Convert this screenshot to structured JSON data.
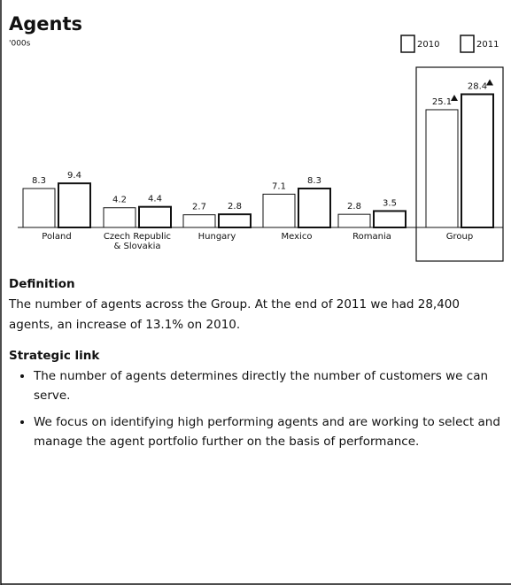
{
  "chart_data": {
    "type": "bar",
    "title": "Agents",
    "subtitle": "'000s",
    "categories": [
      "Poland",
      "Czech Republic & Slovakia",
      "Hungary",
      "Mexico",
      "Romania",
      "Group"
    ],
    "series": [
      {
        "name": "2010",
        "color": "#ffffff",
        "values": [
          8.3,
          4.2,
          2.7,
          7.1,
          2.8,
          25.1
        ]
      },
      {
        "name": "2011",
        "color": "#ffffff",
        "values": [
          9.4,
          4.4,
          2.8,
          8.3,
          3.5,
          28.4
        ]
      }
    ]
  },
  "text": {
    "definition_heading": "Definition",
    "definition": "The number of agents across the Group. At the end of 2011 we had 28,400 agents, an increase of 13.1% on 2010.",
    "strategic_heading": "Strategic link",
    "bullets": [
      "The number of agents determines directly the number of customers we can serve.",
      "We focus on identifying high performing agents and are working to select and manage the agent portfolio further on the basis of performance."
    ]
  }
}
